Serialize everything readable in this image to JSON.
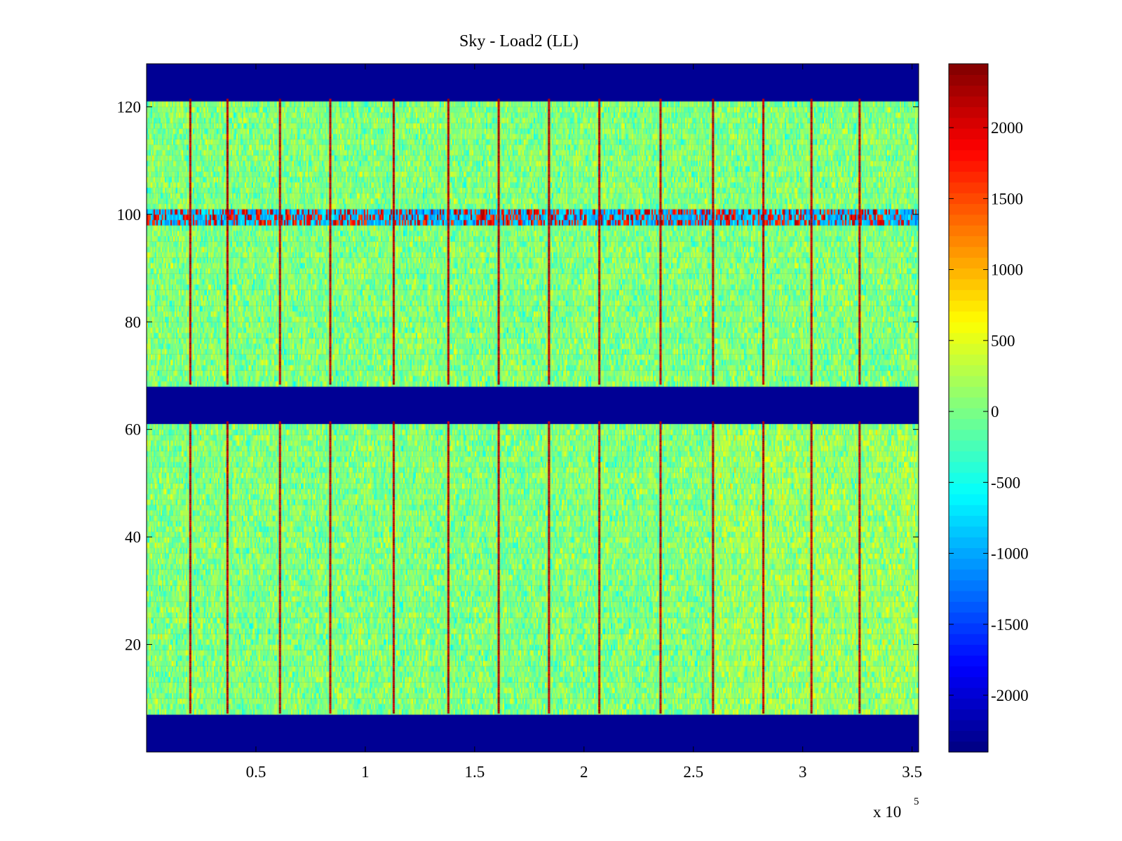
{
  "chart_data": {
    "type": "heatmap",
    "title": "Sky - Load2 (LL)",
    "xlabel": "",
    "ylabel": "",
    "x_multiplier": "x 10",
    "x_multiplier_exponent": "5",
    "xlim": [
      0,
      3.53
    ],
    "ylim": [
      0,
      128
    ],
    "x_ticks": [
      {
        "value": 0.5,
        "label": "0.5"
      },
      {
        "value": 1,
        "label": "1"
      },
      {
        "value": 1.5,
        "label": "1.5"
      },
      {
        "value": 2,
        "label": "2"
      },
      {
        "value": 2.5,
        "label": "2.5"
      },
      {
        "value": 3,
        "label": "3"
      },
      {
        "value": 3.5,
        "label": "3.5"
      }
    ],
    "y_ticks": [
      {
        "value": 20,
        "label": "20"
      },
      {
        "value": 40,
        "label": "40"
      },
      {
        "value": 60,
        "label": "60"
      },
      {
        "value": 80,
        "label": "80"
      },
      {
        "value": 100,
        "label": "100"
      },
      {
        "value": 120,
        "label": "120"
      }
    ],
    "masked_row_bands": [
      [
        0,
        7.5
      ],
      [
        61.5,
        68.5
      ],
      [
        121.5,
        128
      ]
    ],
    "noisy_row_band": [
      98.5,
      101.5
    ],
    "hot_columns_x": [
      0.2,
      0.37,
      0.61,
      0.84,
      1.13,
      1.38,
      1.61,
      1.84,
      2.07,
      2.35,
      2.59,
      2.82,
      3.04,
      3.26
    ],
    "colorbar": {
      "colormap": "jet",
      "clim": [
        -2400,
        2450
      ],
      "ticks": [
        {
          "value": 2000,
          "label": "2000"
        },
        {
          "value": 1500,
          "label": "1500"
        },
        {
          "value": 1000,
          "label": "1000"
        },
        {
          "value": 500,
          "label": "500"
        },
        {
          "value": 0,
          "label": "0"
        },
        {
          "value": -500,
          "label": "-500"
        },
        {
          "value": -1000,
          "label": "-1000"
        },
        {
          "value": -1500,
          "label": "-1500"
        },
        {
          "value": -2000,
          "label": "-2000"
        }
      ]
    },
    "grid": false,
    "legend": "none"
  }
}
